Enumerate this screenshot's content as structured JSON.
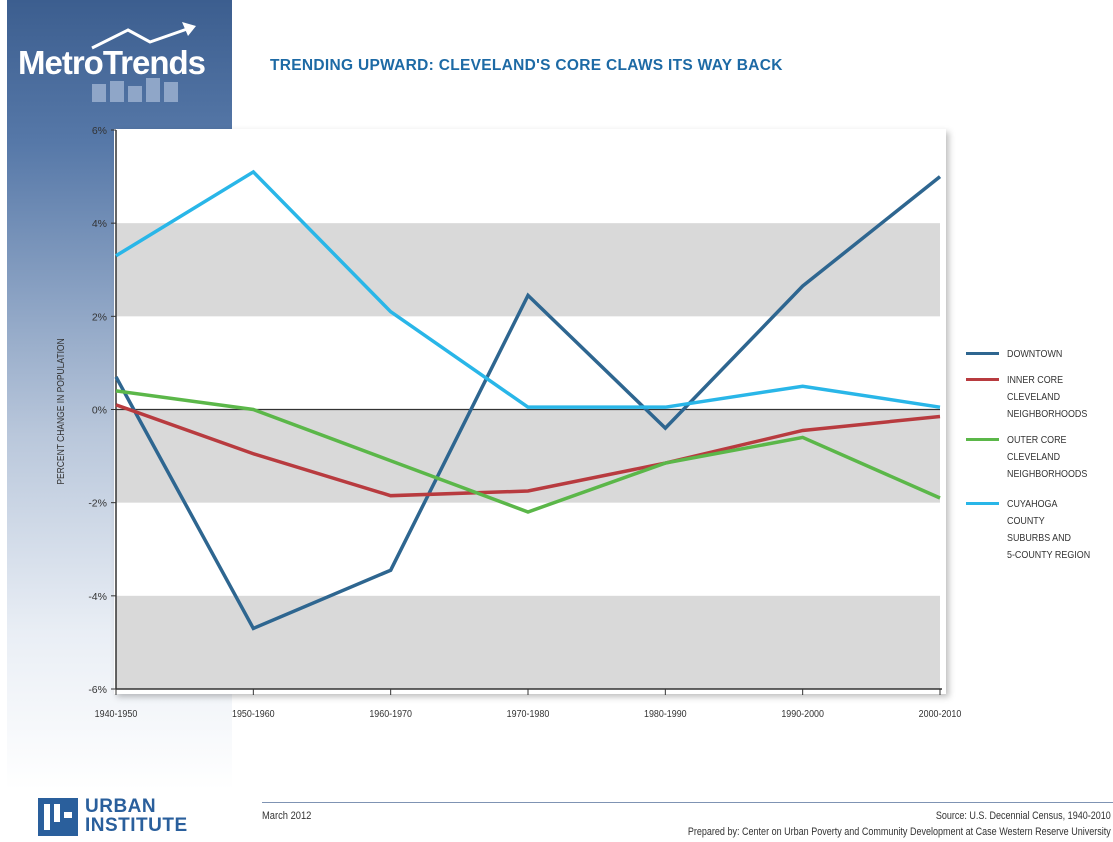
{
  "brand": {
    "logo_text": "MetroTrends",
    "org_line1": "URBAN",
    "org_line2": "INSTITUTE"
  },
  "title": "TRENDING UPWARD: CLEVELAND'S CORE CLAWS ITS WAY BACK",
  "footer": {
    "date": "March 2012",
    "source": "Source: U.S. Decennial Census, 1940-2010",
    "prepared_by": "Prepared by: Center on Urban Poverty and Community Development at Case Western Reserve University"
  },
  "colors": {
    "sidebar": "#3c5e8f",
    "title": "#1d6aa5",
    "band": "#d9d9d9"
  },
  "chart_data": {
    "type": "line",
    "title": "TRENDING UPWARD: CLEVELAND'S CORE CLAWS ITS WAY BACK",
    "ylabel": "PERCENT CHANGE IN POPULATION",
    "xlabel": "",
    "categories": [
      "1940-1950",
      "1950-1960",
      "1960-1970",
      "1970-1980",
      "1980-1990",
      "1990-2000",
      "2000-2010"
    ],
    "ylim": [
      -6,
      6
    ],
    "yticks": [
      6,
      4,
      2,
      0,
      -2,
      -4,
      -6
    ],
    "ytick_labels": [
      "6%",
      "4%",
      "2%",
      "0%",
      "-2%",
      "-4%",
      "-6%"
    ],
    "grid": "alternating shaded bands",
    "legend_position": "right",
    "series": [
      {
        "name": "DOWNTOWN",
        "color": "#2e6690",
        "values": [
          0.7,
          -4.7,
          -3.45,
          2.45,
          -0.4,
          2.65,
          5.0
        ]
      },
      {
        "name": "INNER CORE CLEVELAND NEIGHBORHOODS",
        "color": "#b83b3f",
        "values": [
          0.1,
          -0.95,
          -1.85,
          -1.75,
          -1.15,
          -0.45,
          -0.15
        ]
      },
      {
        "name": "OUTER CORE CLEVELAND NEIGHBORHOODS",
        "color": "#5bb749",
        "values": [
          0.4,
          0.0,
          -1.1,
          -2.2,
          -1.15,
          -0.6,
          -1.9
        ]
      },
      {
        "name": "CUYAHOGA COUNTY SUBURBS AND 5-COUNTY REGION",
        "color": "#29b6e8",
        "values": [
          3.3,
          5.1,
          2.1,
          0.05,
          0.05,
          0.5,
          0.05
        ]
      }
    ]
  }
}
